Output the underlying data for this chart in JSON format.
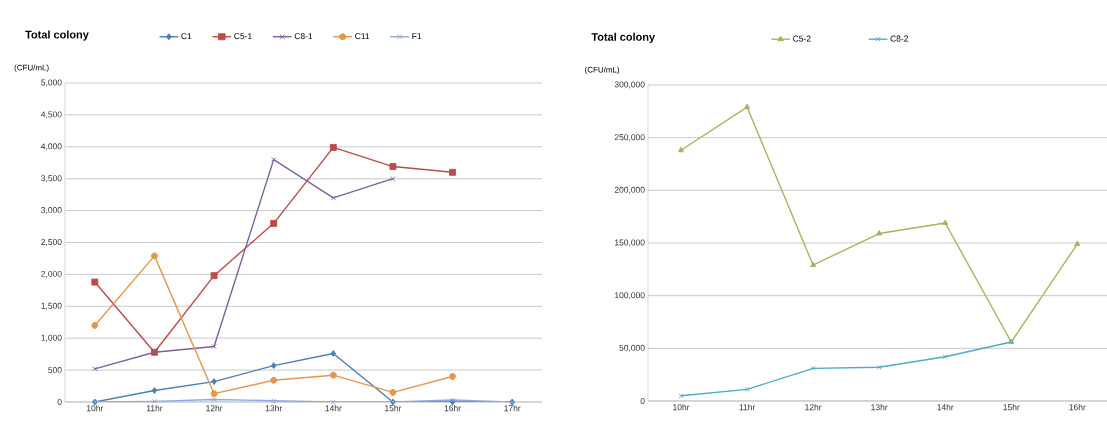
{
  "chart_data": [
    {
      "type": "line",
      "title": "Total colony",
      "ylabel": "(CFU/mL)",
      "categories": [
        "10hr",
        "11hr",
        "12hr",
        "13hr",
        "14hr",
        "15hr",
        "16hr",
        "17hr"
      ],
      "series": [
        {
          "name": "C1",
          "color": "#4a7ebb",
          "marker": "diamond",
          "values": [
            0,
            180,
            320,
            570,
            760,
            0,
            0,
            0
          ]
        },
        {
          "name": "C5-1",
          "color": "#be4b48",
          "marker": "square",
          "values": [
            1880,
            780,
            1980,
            2800,
            3990,
            3690,
            3600,
            null
          ]
        },
        {
          "name": "C8-1",
          "color": "#7d60a0",
          "marker": "cross",
          "values": [
            520,
            780,
            870,
            3800,
            3200,
            3500,
            null,
            null
          ]
        },
        {
          "name": "C11",
          "color": "#e8954a",
          "marker": "circle",
          "values": [
            1200,
            2290,
            130,
            340,
            420,
            150,
            400,
            null
          ]
        },
        {
          "name": "F1",
          "color": "#8ea9db",
          "marker": "cross",
          "values": [
            0,
            10,
            40,
            20,
            0,
            0,
            30,
            0
          ]
        }
      ],
      "ylim": [
        0,
        5000
      ],
      "yticks": [
        0,
        {
          "value": 500,
          "label": "500"
        },
        {
          "value": 1000,
          "label": "1,000"
        },
        {
          "value": 1500,
          "label": "1,500"
        },
        {
          "value": 2000,
          "label": "2,000"
        },
        {
          "value": 2500,
          "label": "2,500"
        },
        {
          "value": 3000,
          "label": "3,000"
        },
        {
          "value": 3500,
          "label": "3,500"
        },
        {
          "value": 4000,
          "label": "4,000"
        },
        {
          "value": 4500,
          "label": "4,500"
        },
        {
          "value": 5000,
          "label": "5,000"
        }
      ],
      "grid": "y",
      "legend": "top"
    },
    {
      "type": "line",
      "title": "Total colony",
      "ylabel": "(CFU/mL)",
      "categories": [
        "10hr",
        "11hr",
        "12hr",
        "13hr",
        "14hr",
        "15hr",
        "16hr"
      ],
      "series": [
        {
          "name": "C5-2",
          "color": "#9bbb59",
          "marker": "triangle",
          "values": [
            238000,
            279000,
            129000,
            159000,
            169000,
            56000,
            149000
          ]
        },
        {
          "name": "C8-2",
          "color": "#4bacc6",
          "marker": "cross",
          "values": [
            5000,
            11000,
            31000,
            32000,
            42000,
            56000,
            null
          ]
        }
      ],
      "ylim": [
        0,
        300000
      ],
      "yticks": [
        0,
        {
          "value": 50000,
          "label": "50,000"
        },
        {
          "value": 100000,
          "label": "100,000"
        },
        {
          "value": 150000,
          "label": "150,000"
        },
        {
          "value": 200000,
          "label": "200,000"
        },
        {
          "value": 250000,
          "label": "250,000"
        },
        {
          "value": 300000,
          "label": "300,000"
        }
      ],
      "grid": "y",
      "legend": "top"
    }
  ]
}
